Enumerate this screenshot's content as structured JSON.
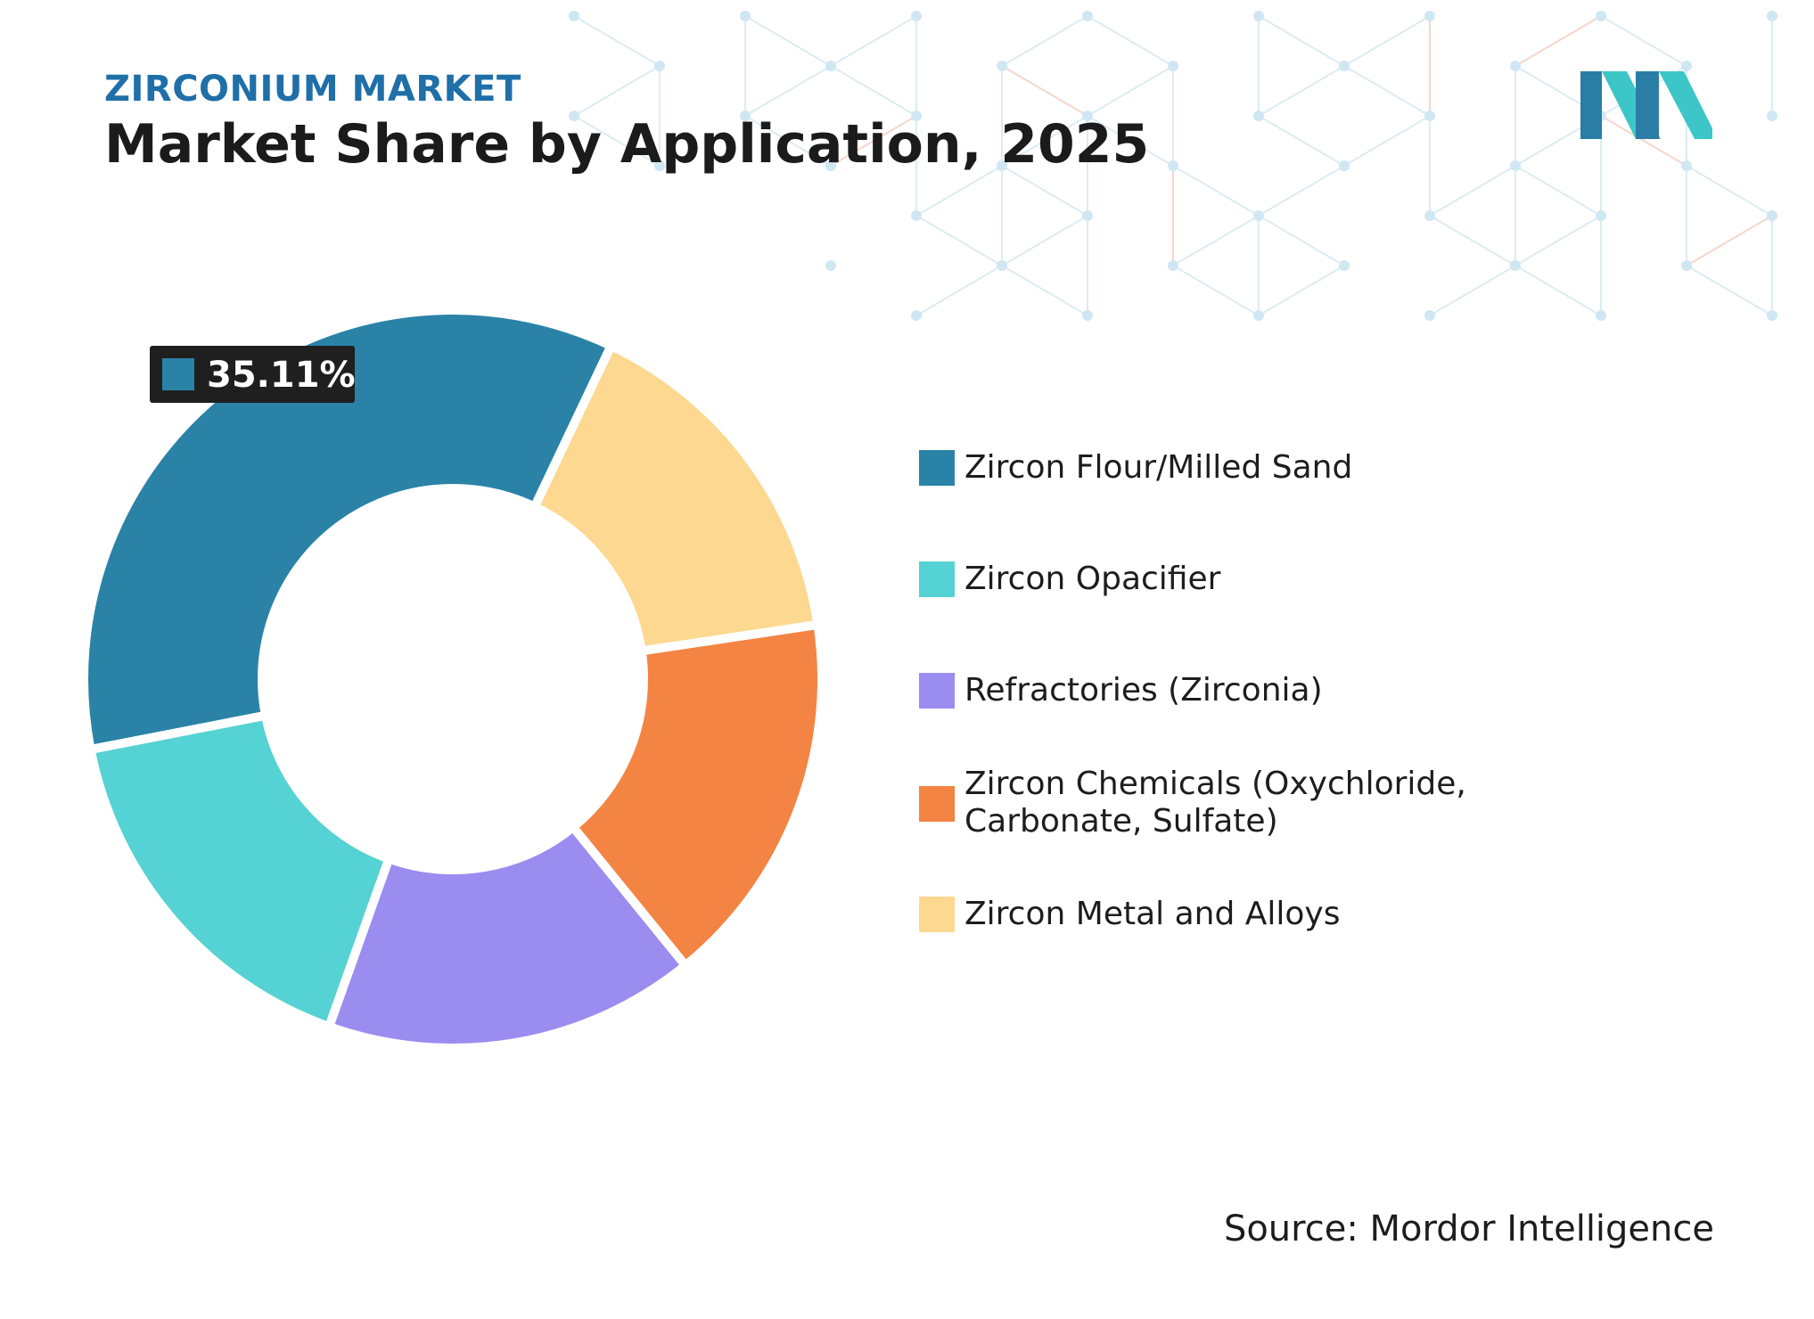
{
  "header": {
    "supertitle": "ZIRCONIUM MARKET",
    "title": "Market Share by Application, 2025"
  },
  "source": "Source: Mordor Intelligence",
  "colors": {
    "supertitle": "#1f6fa8",
    "callout_bg": "#1f1f1f",
    "logo_dark": "#2a7ea6",
    "logo_light": "#3cc6c8"
  },
  "chart_data": {
    "type": "pie",
    "donut": true,
    "title": "Market Share by Application, 2025",
    "legend_position": "right",
    "slices": [
      {
        "label": "Zircon Flour/Milled Sand",
        "value": 35.11,
        "color": "#2a83a7"
      },
      {
        "label": "Zircon Opacifier",
        "value": 16.5,
        "color": "#55d2d3"
      },
      {
        "label": "Refractories (Zirconia)",
        "value": 16.3,
        "color": "#9b8cf0"
      },
      {
        "label": "Zircon Chemicals (Oxychloride, Carbonate, Sulfate)",
        "value": 16.5,
        "color": "#f48443"
      },
      {
        "label": "Zircon Metal and Alloys",
        "value": 15.59,
        "color": "#fdd891"
      }
    ],
    "callout": {
      "label": "35.11%",
      "slice": 0
    }
  }
}
